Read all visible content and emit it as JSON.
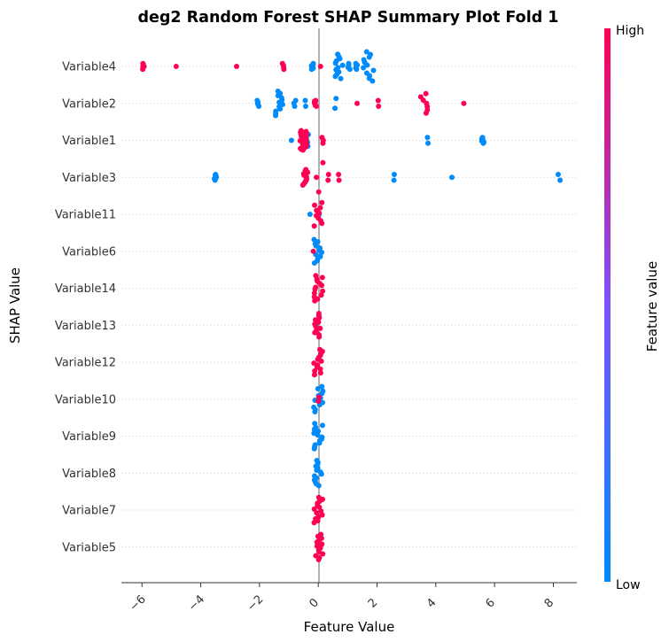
{
  "chart_data": {
    "type": "scatter",
    "title": "deg2 Random Forest SHAP Summary Plot Fold 1",
    "xlabel": "Feature Value",
    "ylabel": "SHAP Value",
    "xlim": [
      -6.7,
      8.8
    ],
    "xticks": [
      -6,
      -4,
      -2,
      0,
      2,
      4,
      6,
      8
    ],
    "xtick_labels": [
      "−6",
      "−4",
      "−2",
      "0",
      "2",
      "4",
      "6",
      "8"
    ],
    "colorbar": {
      "label": "Feature value",
      "high_label": "High",
      "low_label": "Low",
      "high_color": "#ff0052",
      "low_color": "#008bfb"
    },
    "features": [
      {
        "name": "Variable4",
        "high": [
          [
            -5.95,
            9,
            0.6
          ],
          [
            -4.85,
            1,
            0.6
          ],
          [
            -2.75,
            1,
            0.6
          ],
          [
            -1.2,
            4,
            0.6
          ],
          [
            0.05,
            1,
            0.6
          ]
        ],
        "low": [
          [
            -0.2,
            6,
            0.6
          ],
          [
            0.7,
            12,
            2.5
          ],
          [
            1.05,
            4,
            0.6
          ],
          [
            1.3,
            5,
            0.6
          ],
          [
            1.7,
            12,
            3.0
          ]
        ]
      },
      {
        "name": "Variable2",
        "high": [
          [
            -0.1,
            8,
            0.6
          ],
          [
            1.35,
            1,
            0.6
          ],
          [
            2.05,
            2,
            0.6
          ],
          [
            3.6,
            7,
            2.0
          ],
          [
            4.95,
            1,
            0.6
          ]
        ],
        "low": [
          [
            -2.05,
            5,
            0.6
          ],
          [
            -1.35,
            12,
            2.5
          ],
          [
            -0.8,
            3,
            0.6
          ],
          [
            -0.45,
            2,
            0.6
          ],
          [
            0.55,
            2,
            1.0
          ]
        ]
      },
      {
        "name": "Variable1",
        "high": [
          [
            -0.5,
            24,
            2.0
          ],
          [
            0.15,
            3,
            0.6
          ]
        ],
        "low": [
          [
            -0.9,
            1,
            0.6
          ],
          [
            -0.4,
            4,
            1.2
          ],
          [
            3.7,
            2,
            0.6
          ],
          [
            5.6,
            6,
            0.6
          ]
        ]
      },
      {
        "name": "Variable3",
        "high": [
          [
            -0.45,
            12,
            1.6
          ],
          [
            0.0,
            3,
            3.0
          ],
          [
            0.35,
            2,
            0.6
          ],
          [
            0.7,
            2,
            0.6
          ]
        ],
        "low": [
          [
            -3.5,
            8,
            0.6
          ],
          [
            2.6,
            2,
            0.6
          ],
          [
            4.55,
            1,
            0.6
          ],
          [
            8.2,
            2,
            0.6
          ]
        ]
      },
      {
        "name": "Variable11",
        "high": [
          [
            0.0,
            10,
            2.4
          ]
        ],
        "low": [
          [
            -0.3,
            1,
            0.6
          ],
          [
            0.0,
            1,
            0.6
          ]
        ]
      },
      {
        "name": "Variable6",
        "high": [
          [
            -0.15,
            1,
            0.6
          ]
        ],
        "low": [
          [
            0.0,
            12,
            2.4
          ]
        ]
      },
      {
        "name": "Variable14",
        "high": [
          [
            0.0,
            14,
            2.6
          ]
        ],
        "low": []
      },
      {
        "name": "Variable13",
        "high": [
          [
            0.0,
            12,
            2.4
          ]
        ],
        "low": [
          [
            0.0,
            2,
            0.6
          ]
        ]
      },
      {
        "name": "Variable12",
        "high": [
          [
            0.0,
            14,
            2.6
          ]
        ],
        "low": []
      },
      {
        "name": "Variable10",
        "high": [
          [
            0.0,
            2,
            0.4
          ]
        ],
        "low": [
          [
            0.0,
            12,
            2.6
          ]
        ]
      },
      {
        "name": "Variable9",
        "high": [],
        "low": [
          [
            0.0,
            14,
            2.6
          ]
        ]
      },
      {
        "name": "Variable8",
        "high": [],
        "low": [
          [
            0.0,
            14,
            2.6
          ]
        ]
      },
      {
        "name": "Variable7",
        "high": [
          [
            0.0,
            14,
            2.6
          ]
        ],
        "low": []
      },
      {
        "name": "Variable5",
        "high": [
          [
            0.0,
            14,
            2.6
          ]
        ],
        "low": []
      }
    ]
  }
}
